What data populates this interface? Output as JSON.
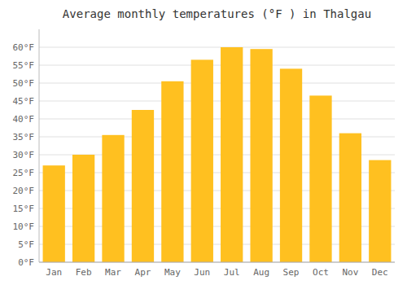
{
  "chart_data": {
    "type": "bar",
    "title": "Average monthly temperatures (°F ) in Thalgau",
    "categories": [
      "Jan",
      "Feb",
      "Mar",
      "Apr",
      "May",
      "Jun",
      "Jul",
      "Aug",
      "Sep",
      "Oct",
      "Nov",
      "Dec"
    ],
    "values": [
      27,
      30,
      35.5,
      42.5,
      50.5,
      56.5,
      60,
      59.5,
      54,
      46.5,
      36,
      28.5
    ],
    "color": "#FFC020",
    "ylim": [
      0,
      65
    ],
    "yticks": [
      {
        "value": 0,
        "label": "0°F"
      },
      {
        "value": 5,
        "label": "5°F"
      },
      {
        "value": 10,
        "label": "10°F"
      },
      {
        "value": 15,
        "label": "15°F"
      },
      {
        "value": 20,
        "label": "20°F"
      },
      {
        "value": 25,
        "label": "25°F"
      },
      {
        "value": 30,
        "label": "30°F"
      },
      {
        "value": 35,
        "label": "35°F"
      },
      {
        "value": 40,
        "label": "40°F"
      },
      {
        "value": 45,
        "label": "45°F"
      },
      {
        "value": 50,
        "label": "50°F"
      },
      {
        "value": 55,
        "label": "55°F"
      },
      {
        "value": 60,
        "label": "60°F"
      }
    ],
    "grid": true
  }
}
